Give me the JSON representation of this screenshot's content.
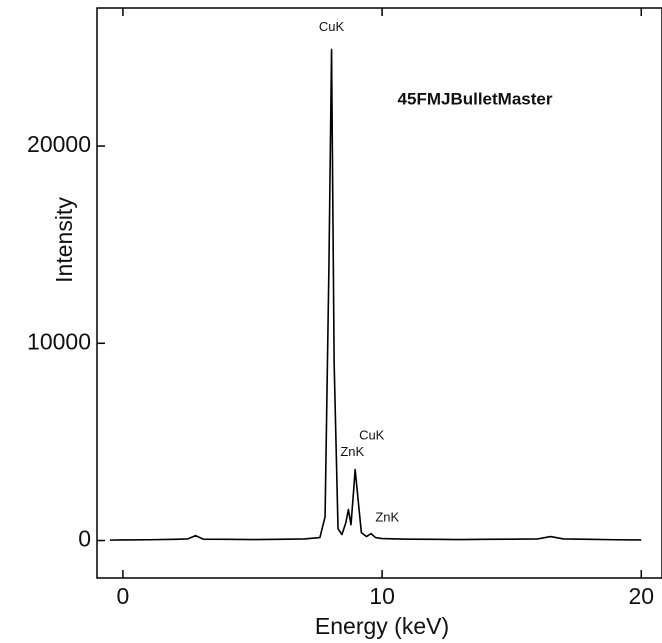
{
  "chart_data": {
    "type": "line",
    "title": "45FMJBulletMaster",
    "x_label": "Energy (keV)",
    "y_label": "Intensity",
    "x": [
      -0.5,
      0,
      1,
      2,
      2.5,
      2.8,
      3.1,
      4,
      5,
      6,
      7,
      7.6,
      7.8,
      7.95,
      8.05,
      8.15,
      8.3,
      8.45,
      8.6,
      8.7,
      8.8,
      8.9,
      8.96,
      9.05,
      9.2,
      9.4,
      9.57,
      9.75,
      10,
      11,
      12,
      13,
      14,
      15,
      16,
      16.5,
      17,
      18,
      19,
      20
    ],
    "values": [
      20,
      30,
      40,
      60,
      80,
      250,
      70,
      60,
      50,
      60,
      80,
      150,
      1200,
      14000,
      24900,
      9000,
      600,
      300,
      900,
      1570,
      800,
      2500,
      3600,
      2400,
      400,
      200,
      350,
      150,
      100,
      70,
      60,
      50,
      60,
      70,
      80,
      200,
      80,
      60,
      40,
      30
    ],
    "color": "#000000",
    "xlim": [
      -1,
      20.8
    ],
    "ylim": [
      -1900,
      27000
    ],
    "xticks": [
      0,
      10,
      20
    ],
    "yticks": [
      0,
      10000,
      20000
    ],
    "annotations": [
      {
        "text": "CuK",
        "x": 8.05,
        "y": 26000
      },
      {
        "text": "CuK",
        "x": 9.6,
        "y": 5300
      },
      {
        "text": "ZnK",
        "x": 8.85,
        "y": 4450
      },
      {
        "text": "ZnK",
        "x": 10.2,
        "y": 1150
      }
    ]
  }
}
